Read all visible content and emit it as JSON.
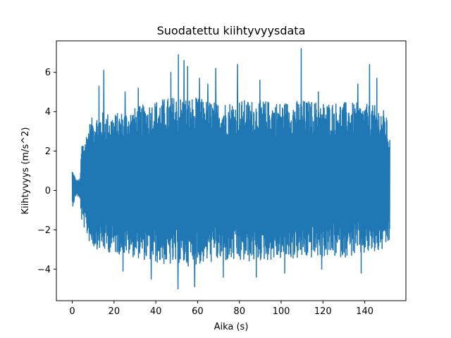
{
  "chart_data": {
    "type": "line",
    "title": "Suodatettu kiihtyvyysdata",
    "xlabel": "Aika (s)",
    "ylabel": "Kiihtyvyys (m/s^2)",
    "xlim": [
      -7.6,
      159.7
    ],
    "ylim": [
      -5.6,
      7.6
    ],
    "xticks": [
      0,
      20,
      40,
      60,
      80,
      100,
      120,
      140
    ],
    "yticks": [
      -4,
      -2,
      0,
      2,
      4,
      6
    ],
    "grid": false,
    "legend": "none",
    "colors": {
      "line": "#1f77b4",
      "axes": "#000000",
      "background": "#ffffff"
    },
    "series": [
      {
        "sample_interval_s": 0.1,
        "envelope": {
          "x": [
            0,
            2,
            3.8,
            4.5,
            6,
            8,
            10,
            15,
            20,
            30,
            40,
            50,
            60,
            70,
            80,
            90,
            100,
            110,
            120,
            130,
            140,
            146,
            150,
            152
          ],
          "high": [
            1.1,
            0.5,
            0.6,
            2.5,
            2.6,
            3.4,
            3.8,
            4.0,
            3.9,
            4.2,
            4.6,
            4.8,
            4.7,
            4.5,
            4.6,
            4.6,
            4.5,
            4.6,
            4.5,
            4.5,
            4.4,
            4.3,
            4.0,
            2.7
          ],
          "low": [
            -0.9,
            -0.2,
            -0.5,
            -1.6,
            -2.0,
            -2.6,
            -2.9,
            -3.1,
            -3.2,
            -3.4,
            -3.7,
            -3.9,
            -3.8,
            -3.6,
            -3.7,
            -3.6,
            -3.5,
            -3.5,
            -3.4,
            -3.4,
            -3.3,
            -3.2,
            -3.0,
            -2.6
          ]
        },
        "peaks": [
          [
            15.1,
            6.1
          ],
          [
            12.8,
            5.3
          ],
          [
            25.3,
            5.0
          ],
          [
            31.6,
            5.2
          ],
          [
            47.2,
            6.0
          ],
          [
            50.8,
            6.9
          ],
          [
            53.5,
            6.6
          ],
          [
            55.2,
            6.3
          ],
          [
            60.9,
            5.7
          ],
          [
            64.9,
            5.4
          ],
          [
            68.7,
            6.2
          ],
          [
            79.1,
            6.4
          ],
          [
            89.8,
            5.6
          ],
          [
            109.6,
            7.2
          ],
          [
            117.8,
            5.0
          ],
          [
            136.7,
            5.4
          ],
          [
            142.3,
            6.4
          ],
          [
            145.8,
            5.7
          ],
          [
            50.6,
            -5.0
          ],
          [
            58.6,
            -4.9
          ],
          [
            37.8,
            -4.5
          ],
          [
            72.3,
            -4.4
          ],
          [
            88.1,
            -4.4
          ],
          [
            101.7,
            -4.2
          ],
          [
            138.3,
            -4.2
          ],
          [
            119.4,
            -4.0
          ],
          [
            24.3,
            -4.1
          ]
        ]
      }
    ]
  }
}
